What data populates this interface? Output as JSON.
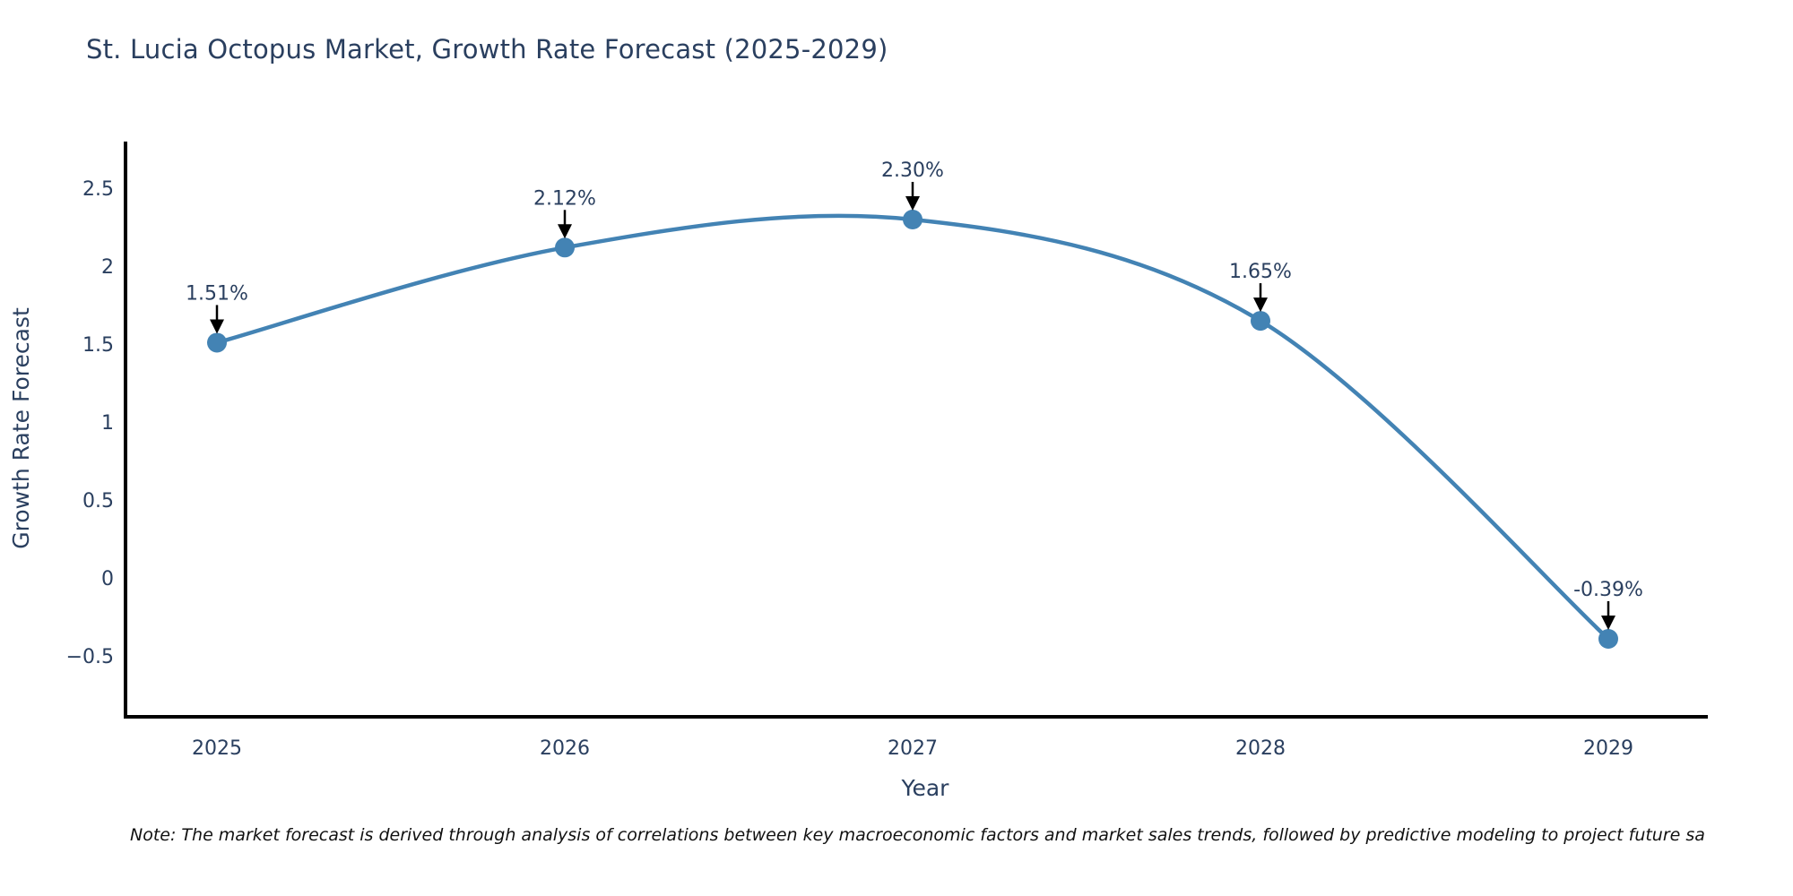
{
  "title": "St. Lucia Octopus Market, Growth Rate Forecast (2025-2029)",
  "note": "Note: The market forecast is derived through analysis of correlations between key macroeconomic factors and market sales trends, followed by predictive modeling to project future sa",
  "colors": {
    "line": "#4383b4",
    "marker": "#4383b4",
    "axis": "#000000",
    "text": "#2a3f5f",
    "arrow": "#000000",
    "note_text": "#111111",
    "background": "#ffffff"
  },
  "chart_data": {
    "type": "line",
    "title": "St. Lucia Octopus Market, Growth Rate Forecast (2025-2029)",
    "xlabel": "Year",
    "ylabel": "Growth Rate Forecast",
    "x": [
      2025,
      2026,
      2027,
      2028,
      2029
    ],
    "y": [
      1.51,
      2.12,
      2.3,
      1.65,
      -0.39
    ],
    "point_labels": [
      "1.51%",
      "2.12%",
      "2.30%",
      "1.65%",
      "-0.39%"
    ],
    "x_tick_labels": [
      "2025",
      "2026",
      "2027",
      "2028",
      "2029"
    ],
    "y_tick_values": [
      2.5,
      2,
      1.5,
      1,
      0.5,
      0,
      -0.5
    ],
    "y_tick_labels": [
      "2.5",
      "2",
      "1.5",
      "1",
      "0.5",
      "0",
      "−0.5"
    ],
    "ylim": [
      -0.89,
      2.8
    ],
    "line_shape": "spline",
    "grid": false,
    "legend": false,
    "annotations_arrows": "black arrows pointing down onto each data point"
  }
}
